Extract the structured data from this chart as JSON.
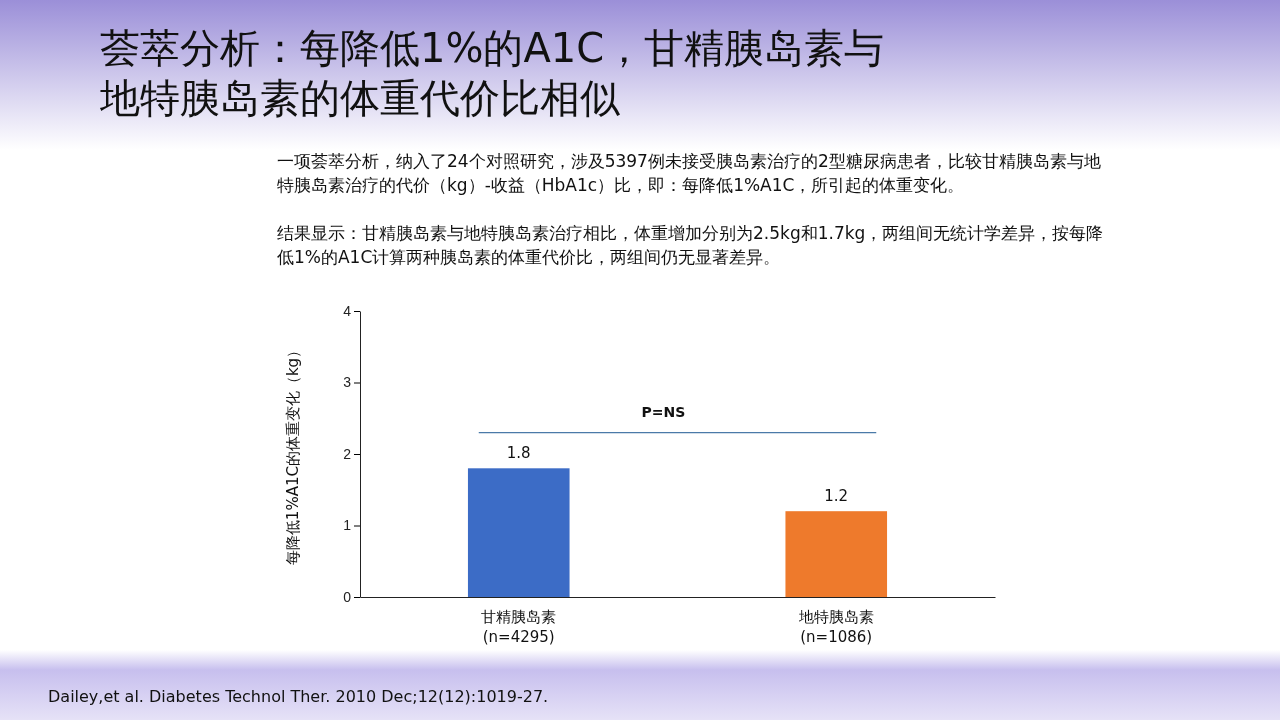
{
  "chart_data": {
    "type": "bar",
    "title": "荟萃分析：每降低1%的A1C，甘精胰岛素与地特胰岛素的体重代价比相似",
    "subtitle": "一项荟萃分析，纳入了24个对照研究，涉及5397例未接受胰岛素治疗的2型糖尿病患者，比较甘精胰岛素与地特胰岛素治疗的代价（kg）-收益（HbA1c）比，即：每降低1%A1C，所引起的体重变化。",
    "ylabel": "每降低1%A1C的体重变化（kg）",
    "categories": [
      "甘精胰岛素\n(n=4295)",
      "地特胰岛素\n(n=1086)"
    ],
    "values": [
      1.8,
      1.2
    ],
    "colors": [
      "#3c6cc6",
      "#ee7a2c"
    ],
    "ylim": [
      0,
      4
    ],
    "yticks": [
      0,
      1,
      2,
      3,
      4
    ],
    "data_labels": true,
    "ref_lines": [
      {
        "axis": "y",
        "value": 2.3,
        "label": "P=NS",
        "color": "#4a7aa8"
      }
    ],
    "annotations": [
      "结果显示：甘精胰岛素与地特胰岛素治疗相比，体重增加分别为2.5kg和1.7kg，两组间无统计学差异，按每降低1%的A1C计算两种胰岛素的体重代价比，两组间仍无显著差异。",
      "Dailey,et al. Diabetes Technol Ther. 2010 Dec;12(12):1019-27."
    ]
  }
}
